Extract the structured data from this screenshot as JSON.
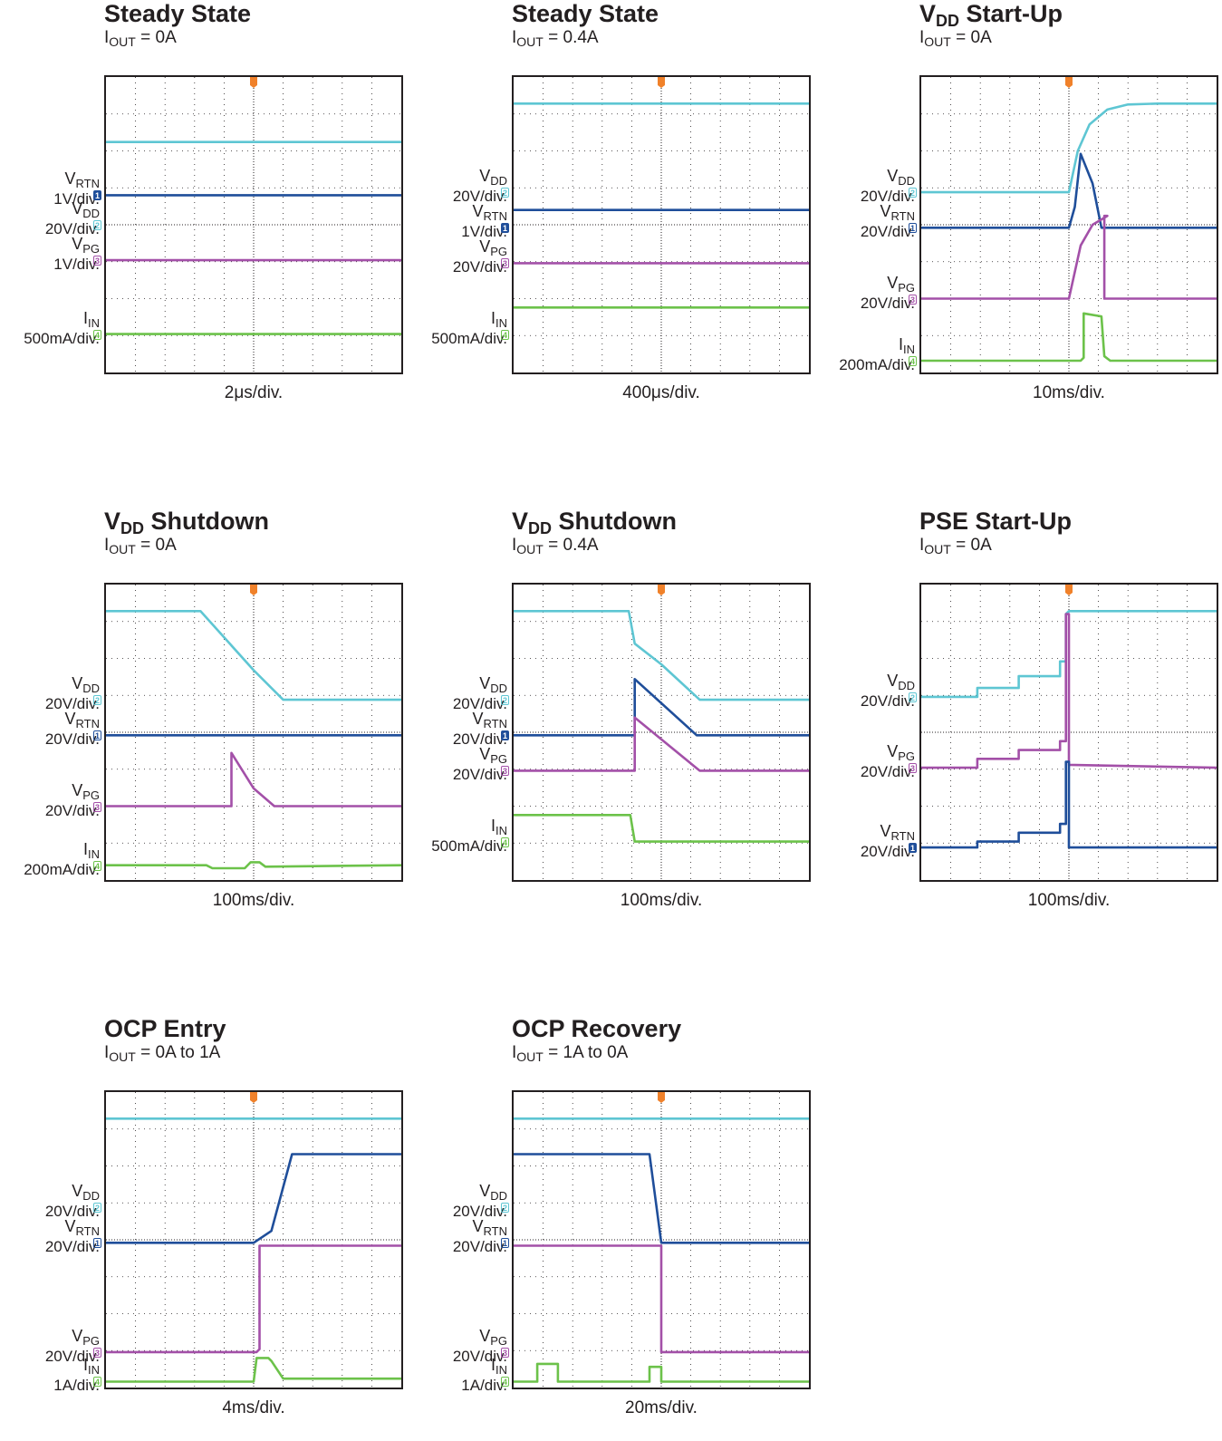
{
  "colors": {
    "vdd": "#5ec6d3",
    "vrtn": "#1f4e9a",
    "vpg": "#a350a8",
    "iin": "#6cc24a",
    "trigger": "#f0812a",
    "grid": "#231f20"
  },
  "chart_data": [
    {
      "type": "line",
      "title_main": "Steady State",
      "title_sub": "",
      "condition_label": "I",
      "condition_sub": "OUT",
      "condition_value": " = 0A",
      "timebase": "2μs/div.",
      "channels": [
        {
          "key": "vrtn",
          "name": "V",
          "sub": "RTN",
          "scale": "1V/div.",
          "num": "1",
          "filled": true,
          "x": [
            0,
            10
          ],
          "y": [
            6.0,
            6.0
          ]
        },
        {
          "key": "vdd",
          "name": "V",
          "sub": "DD",
          "scale": "20V/div.",
          "num": "2",
          "filled": false,
          "x": [
            0,
            10
          ],
          "y": [
            7.8,
            7.8
          ]
        },
        {
          "key": "vpg",
          "name": "V",
          "sub": "PG",
          "scale": "1V/div.",
          "num": "3",
          "filled": false,
          "x": [
            0,
            10
          ],
          "y": [
            3.8,
            3.8
          ]
        },
        {
          "key": "iin",
          "name": "I",
          "sub": "IN",
          "scale": "500mA/div.",
          "num": "4",
          "filled": false,
          "x": [
            0,
            10
          ],
          "y": [
            1.3,
            1.3
          ]
        }
      ],
      "label_order": [
        "vrtn",
        "vdd",
        "vpg",
        "iin"
      ],
      "label_levels": [
        6.0,
        5.0,
        3.8,
        1.3
      ]
    },
    {
      "type": "line",
      "title_main": "Steady State",
      "title_sub": "",
      "condition_label": "I",
      "condition_sub": "OUT",
      "condition_value": " = 0.4A",
      "timebase": "400μs/div.",
      "channels": [
        {
          "key": "vdd",
          "name": "V",
          "sub": "DD",
          "scale": "20V/div.",
          "num": "2",
          "filled": false,
          "x": [
            0,
            10
          ],
          "y": [
            9.1,
            9.1
          ]
        },
        {
          "key": "vrtn",
          "name": "V",
          "sub": "RTN",
          "scale": "1V/div.",
          "num": "1",
          "filled": true,
          "x": [
            0,
            10
          ],
          "y": [
            5.5,
            5.5
          ]
        },
        {
          "key": "vpg",
          "name": "V",
          "sub": "PG",
          "scale": "20V/div.",
          "num": "3",
          "filled": false,
          "x": [
            0,
            10
          ],
          "y": [
            3.7,
            3.7
          ]
        },
        {
          "key": "iin",
          "name": "I",
          "sub": "IN",
          "scale": "500mA/div.",
          "num": "4",
          "filled": false,
          "x": [
            0,
            10
          ],
          "y": [
            2.2,
            2.2
          ]
        }
      ],
      "label_order": [
        "vdd",
        "vrtn",
        "vpg",
        "iin"
      ],
      "label_levels": [
        6.1,
        4.9,
        3.7,
        1.3
      ]
    },
    {
      "type": "line",
      "title_main": "V",
      "title_sub": "DD",
      "title_after": " Start-Up",
      "condition_label": "I",
      "condition_sub": "OUT",
      "condition_value": " = 0A",
      "timebase": "10ms/div.",
      "channels": [
        {
          "key": "vdd",
          "name": "V",
          "sub": "DD",
          "scale": "20V/div.",
          "num": "2",
          "filled": false,
          "x": [
            0,
            5.0,
            5.3,
            5.7,
            6.3,
            7.0,
            8.0,
            10
          ],
          "y": [
            6.1,
            6.1,
            7.5,
            8.4,
            8.9,
            9.07,
            9.1,
            9.1
          ]
        },
        {
          "key": "vrtn",
          "name": "V",
          "sub": "RTN",
          "scale": "20V/div.",
          "num": "1",
          "filled": false,
          "x": [
            0,
            5.0,
            5.2,
            5.4,
            5.8,
            6.1,
            10
          ],
          "y": [
            4.9,
            4.9,
            5.6,
            7.4,
            6.4,
            4.9,
            4.9
          ]
        },
        {
          "key": "vpg",
          "name": "V",
          "sub": "PG",
          "scale": "20V/div.",
          "num": "3",
          "filled": false,
          "x": [
            0,
            5.0,
            5.4,
            5.8,
            6.3,
            6.2,
            6.2,
            10
          ],
          "y": [
            2.5,
            2.5,
            4.3,
            5.0,
            5.3,
            5.3,
            2.5,
            2.5
          ]
        },
        {
          "key": "iin",
          "name": "I",
          "sub": "IN",
          "scale": "200mA/div.",
          "num": "4",
          "filled": false,
          "x": [
            0,
            5.4,
            5.5,
            5.5,
            6.1,
            6.2,
            6.4,
            10
          ],
          "y": [
            0.4,
            0.4,
            0.5,
            2.0,
            1.9,
            0.55,
            0.4,
            0.4
          ]
        }
      ],
      "label_order": [
        "vdd",
        "vrtn",
        "vpg",
        "iin"
      ],
      "label_levels": [
        6.1,
        4.9,
        2.5,
        0.4
      ]
    },
    {
      "type": "line",
      "title_main": "V",
      "title_sub": "DD",
      "title_after": " Shutdown",
      "condition_label": "I",
      "condition_sub": "OUT",
      "condition_value": " = 0A",
      "timebase": "100ms/div.",
      "channels": [
        {
          "key": "vdd",
          "name": "V",
          "sub": "DD",
          "scale": "20V/div.",
          "num": "2",
          "filled": false,
          "x": [
            0,
            3.2,
            5.0,
            6.0,
            10
          ],
          "y": [
            9.1,
            9.1,
            7.1,
            6.1,
            6.1
          ]
        },
        {
          "key": "vrtn",
          "name": "V",
          "sub": "RTN",
          "scale": "20V/div.",
          "num": "1",
          "filled": false,
          "x": [
            0,
            10
          ],
          "y": [
            4.9,
            4.9
          ]
        },
        {
          "key": "vpg",
          "name": "V",
          "sub": "PG",
          "scale": "20V/div.",
          "num": "3",
          "filled": false,
          "x": [
            0,
            4.25,
            4.25,
            4.5,
            5.0,
            5.7,
            10
          ],
          "y": [
            2.5,
            2.5,
            4.3,
            3.9,
            3.1,
            2.5,
            2.5
          ]
        },
        {
          "key": "iin",
          "name": "I",
          "sub": "IN",
          "scale": "200mA/div.",
          "num": "4",
          "filled": false,
          "x": [
            0,
            3.4,
            3.6,
            4.7,
            4.9,
            5.2,
            5.4,
            10
          ],
          "y": [
            0.5,
            0.5,
            0.4,
            0.4,
            0.6,
            0.6,
            0.45,
            0.5
          ]
        }
      ],
      "label_order": [
        "vdd",
        "vrtn",
        "vpg",
        "iin"
      ],
      "label_levels": [
        6.1,
        4.9,
        2.5,
        0.5
      ]
    },
    {
      "type": "line",
      "title_main": "V",
      "title_sub": "DD",
      "title_after": " Shutdown",
      "condition_label": "I",
      "condition_sub": "OUT",
      "condition_value": " = 0.4A",
      "timebase": "100ms/div.",
      "channels": [
        {
          "key": "vdd",
          "name": "V",
          "sub": "DD",
          "scale": "20V/div.",
          "num": "2",
          "filled": false,
          "x": [
            0,
            3.9,
            4.1,
            5.0,
            6.3,
            10
          ],
          "y": [
            9.1,
            9.1,
            8.0,
            7.3,
            6.1,
            6.1
          ]
        },
        {
          "key": "vrtn",
          "name": "V",
          "sub": "RTN",
          "scale": "20V/div.",
          "num": "1",
          "filled": true,
          "x": [
            0,
            4.1,
            4.1,
            6.2,
            10
          ],
          "y": [
            4.9,
            4.9,
            6.8,
            4.9,
            4.9
          ]
        },
        {
          "key": "vpg",
          "name": "V",
          "sub": "PG",
          "scale": "20V/div.",
          "num": "3",
          "filled": false,
          "x": [
            0,
            4.1,
            4.1,
            6.3,
            10
          ],
          "y": [
            3.7,
            3.7,
            5.5,
            3.7,
            3.7
          ]
        },
        {
          "key": "iin",
          "name": "I",
          "sub": "IN",
          "scale": "500mA/div.",
          "num": "4",
          "filled": false,
          "x": [
            0,
            3.95,
            4.1,
            10
          ],
          "y": [
            2.2,
            2.2,
            1.3,
            1.3
          ]
        }
      ],
      "label_order": [
        "vdd",
        "vrtn",
        "vpg",
        "iin"
      ],
      "label_levels": [
        6.1,
        4.9,
        3.7,
        1.3
      ]
    },
    {
      "type": "line",
      "title_main": "PSE Start-Up",
      "title_sub": "",
      "condition_label": "I",
      "condition_sub": "OUT",
      "condition_value": " = 0A",
      "timebase": "100ms/div.",
      "channels": [
        {
          "key": "vdd",
          "name": "V",
          "sub": "DD",
          "scale": "20V/div.",
          "num": "2",
          "filled": false,
          "x": [
            0,
            1.9,
            1.9,
            3.3,
            3.3,
            4.7,
            4.7,
            4.9,
            4.9,
            5.0,
            10
          ],
          "y": [
            6.2,
            6.2,
            6.5,
            6.5,
            6.9,
            6.9,
            7.4,
            7.4,
            9.0,
            9.1,
            9.1
          ]
        },
        {
          "key": "vpg",
          "name": "V",
          "sub": "PG",
          "scale": "20V/div.",
          "num": "3",
          "filled": false,
          "x": [
            0,
            1.9,
            1.9,
            3.3,
            3.3,
            4.7,
            4.7,
            4.9,
            4.9,
            5.0,
            5.0,
            10
          ],
          "y": [
            3.8,
            3.8,
            4.1,
            4.1,
            4.4,
            4.4,
            4.7,
            4.7,
            9.0,
            9.0,
            3.9,
            3.8
          ]
        },
        {
          "key": "vrtn",
          "name": "V",
          "sub": "RTN",
          "scale": "20V/div.",
          "num": "1",
          "filled": true,
          "x": [
            0,
            1.9,
            1.9,
            3.3,
            3.3,
            4.7,
            4.7,
            4.9,
            4.9,
            5.0,
            5.0,
            10
          ],
          "y": [
            1.1,
            1.1,
            1.3,
            1.3,
            1.6,
            1.6,
            1.9,
            1.9,
            4.0,
            4.0,
            1.1,
            1.1
          ]
        }
      ],
      "label_order": [
        "vdd",
        "vpg",
        "vrtn"
      ],
      "label_levels": [
        6.2,
        3.8,
        1.1
      ]
    },
    {
      "type": "line",
      "title_main": "OCP Entry",
      "title_sub": "",
      "condition_label": "I",
      "condition_sub": "OUT",
      "condition_value": " = 0A to 1A",
      "timebase": "4ms/div.",
      "channels": [
        {
          "key": "vdd",
          "name": "V",
          "sub": "DD",
          "scale": "20V/div.",
          "num": "2",
          "filled": false,
          "x": [
            0,
            10
          ],
          "y": [
            9.1,
            9.1
          ]
        },
        {
          "key": "vrtn",
          "name": "V",
          "sub": "RTN",
          "scale": "20V/div.",
          "num": "1",
          "filled": false,
          "x": [
            0,
            5.0,
            5.6,
            6.3,
            10
          ],
          "y": [
            4.9,
            4.9,
            5.3,
            7.9,
            7.9
          ]
        },
        {
          "key": "vpg",
          "name": "V",
          "sub": "PG",
          "scale": "20V/div.",
          "num": "3",
          "filled": false,
          "x": [
            0,
            5.1,
            5.2,
            5.2,
            10
          ],
          "y": [
            1.2,
            1.2,
            1.3,
            4.8,
            4.8
          ]
        },
        {
          "key": "iin",
          "name": "I",
          "sub": "IN",
          "scale": "1A/div.",
          "num": "4",
          "filled": false,
          "x": [
            0,
            5.0,
            5.1,
            5.5,
            5.6,
            6.0,
            10
          ],
          "y": [
            0.2,
            0.2,
            1.0,
            1.0,
            0.9,
            0.3,
            0.3
          ]
        }
      ],
      "label_order": [
        "vdd",
        "vrtn",
        "vpg",
        "iin"
      ],
      "label_levels": [
        6.1,
        4.9,
        1.2,
        0.2
      ]
    },
    {
      "type": "line",
      "title_main": "OCP Recovery",
      "title_sub": "",
      "condition_label": "I",
      "condition_sub": "OUT",
      "condition_value": " = 1A to 0A",
      "timebase": "20ms/div.",
      "channels": [
        {
          "key": "vdd",
          "name": "V",
          "sub": "DD",
          "scale": "20V/div.",
          "num": "2",
          "filled": false,
          "x": [
            0,
            10
          ],
          "y": [
            9.1,
            9.1
          ]
        },
        {
          "key": "vrtn",
          "name": "V",
          "sub": "RTN",
          "scale": "20V/div.",
          "num": "1",
          "filled": false,
          "x": [
            0,
            4.6,
            5.0,
            10
          ],
          "y": [
            7.9,
            7.9,
            4.9,
            4.9
          ]
        },
        {
          "key": "vpg",
          "name": "V",
          "sub": "PG",
          "scale": "20V/div.",
          "num": "3",
          "filled": false,
          "x": [
            0,
            5.0,
            5.0,
            10
          ],
          "y": [
            4.8,
            4.8,
            1.2,
            1.2
          ]
        },
        {
          "key": "iin",
          "name": "I",
          "sub": "IN",
          "scale": "1A/div.",
          "num": "4",
          "filled": false,
          "x": [
            0,
            0.8,
            0.8,
            1.5,
            1.5,
            4.6,
            4.6,
            5.0,
            5.0,
            10
          ],
          "y": [
            0.2,
            0.2,
            0.8,
            0.8,
            0.2,
            0.2,
            0.7,
            0.7,
            0.2,
            0.2
          ]
        }
      ],
      "label_order": [
        "vdd",
        "vrtn",
        "vpg",
        "iin"
      ],
      "label_levels": [
        6.1,
        4.9,
        1.2,
        0.2
      ]
    }
  ]
}
